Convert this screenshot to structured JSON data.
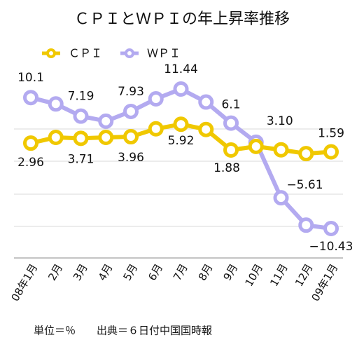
{
  "chart_data": {
    "type": "line",
    "title": "ＣＰＩとＷＰＩの年上昇率推移",
    "categories": [
      "08年1月",
      "2月",
      "3月",
      "4月",
      "5月",
      "6月",
      "7月",
      "8月",
      "9月",
      "10月",
      "11月",
      "12月",
      "09年1月"
    ],
    "series": [
      {
        "name": "ＣＰＩ",
        "color": "#f0c800",
        "values": [
          2.96,
          3.86,
          3.71,
          3.86,
          3.96,
          5.2,
          5.92,
          5.1,
          1.88,
          2.44,
          1.91,
          1.32,
          1.59
        ],
        "value_labels": [
          "2.96",
          null,
          "3.71",
          null,
          "3.96",
          null,
          "5.92",
          null,
          "1.88",
          null,
          null,
          null,
          "1.59"
        ]
      },
      {
        "name": "ＷＰＩ",
        "color": "#b3aaf0",
        "values": [
          10.1,
          9.1,
          7.19,
          6.4,
          7.93,
          9.9,
          11.44,
          9.4,
          6.1,
          3.1,
          -5.61,
          -9.9,
          -10.43
        ],
        "value_labels": [
          "10.1",
          null,
          "7.19",
          null,
          "7.93",
          null,
          "11.44",
          null,
          "6.1",
          "3.10",
          "−5.61",
          null,
          "−10.43"
        ]
      }
    ],
    "note": "単位＝％　　出典＝６日付中国国時報"
  }
}
